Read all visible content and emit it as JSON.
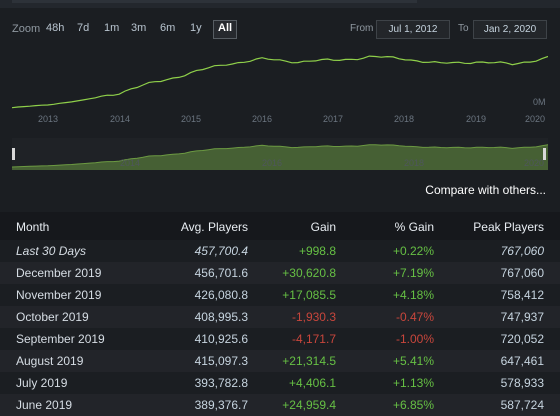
{
  "toolbar": {
    "zoom_label": "Zoom",
    "zoom_options": [
      "48h",
      "7d",
      "1m",
      "3m",
      "6m",
      "1y",
      "All"
    ],
    "active_zoom": "All",
    "from_label": "From",
    "from_value": "Jul 1, 2012",
    "to_label": "To",
    "to_value": "Jan 2, 2020"
  },
  "chart_data": {
    "type": "line",
    "x_ticks": [
      "2013",
      "2014",
      "2015",
      "2016",
      "2017",
      "2018",
      "2019",
      "2020"
    ],
    "y_axis_label": "0M",
    "navigator_ticks": [
      "2014",
      "2016",
      "2018",
      "2020"
    ],
    "series": [
      {
        "x": [
          "2012-07",
          "2013-01",
          "2013-07",
          "2014-01",
          "2014-07",
          "2015-01",
          "2015-07",
          "2016-01",
          "2016-07",
          "2017-01",
          "2017-07",
          "2018-01",
          "2018-07",
          "2019-01",
          "2019-07",
          "2020-01"
        ],
        "values": [
          20000,
          45000,
          85000,
          150000,
          240000,
          320000,
          400000,
          440000,
          420000,
          430000,
          460000,
          445000,
          400000,
          420000,
          394000,
          457700
        ]
      }
    ]
  },
  "compare_link": "Compare with others...",
  "table": {
    "headers": {
      "month": "Month",
      "avg": "Avg. Players",
      "gain": "Gain",
      "pct": "% Gain",
      "peak": "Peak Players"
    },
    "rows": [
      {
        "month": "Last 30 Days",
        "avg": "457,700.4",
        "gain": "+998.8",
        "pct": "+0.22%",
        "peak": "767,060",
        "trend": "pos",
        "italic": true
      },
      {
        "month": "December 2019",
        "avg": "456,701.6",
        "gain": "+30,620.8",
        "pct": "+7.19%",
        "peak": "767,060",
        "trend": "pos"
      },
      {
        "month": "November 2019",
        "avg": "426,080.8",
        "gain": "+17,085.5",
        "pct": "+4.18%",
        "peak": "758,412",
        "trend": "pos"
      },
      {
        "month": "October 2019",
        "avg": "408,995.3",
        "gain": "-1,930.3",
        "pct": "-0.47%",
        "peak": "747,937",
        "trend": "neg"
      },
      {
        "month": "September 2019",
        "avg": "410,925.6",
        "gain": "-4,171.7",
        "pct": "-1.00%",
        "peak": "720,052",
        "trend": "neg"
      },
      {
        "month": "August 2019",
        "avg": "415,097.3",
        "gain": "+21,314.5",
        "pct": "+5.41%",
        "peak": "647,461",
        "trend": "pos"
      },
      {
        "month": "July 2019",
        "avg": "393,782.8",
        "gain": "+4,406.1",
        "pct": "+1.13%",
        "peak": "578,933",
        "trend": "pos"
      },
      {
        "month": "June 2019",
        "avg": "389,376.7",
        "gain": "+24,959.4",
        "pct": "+6.85%",
        "peak": "587,724",
        "trend": "pos"
      }
    ]
  }
}
